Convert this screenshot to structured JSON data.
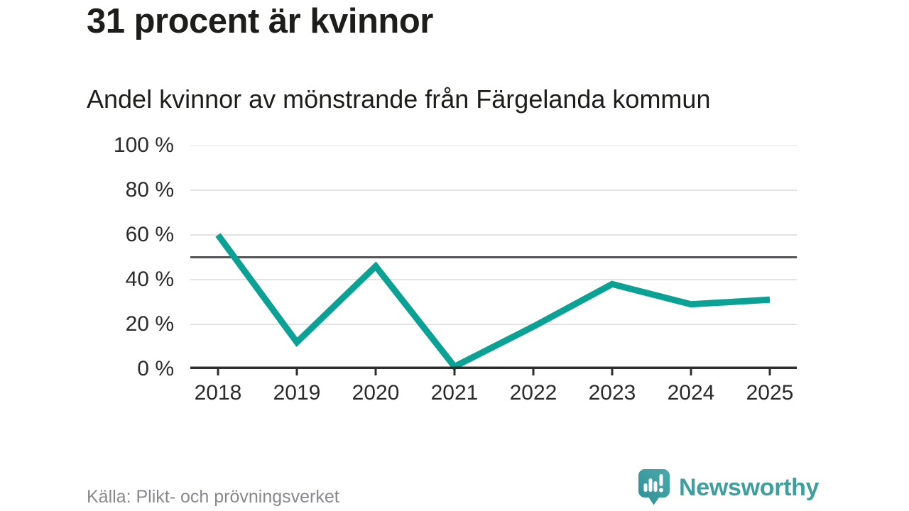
{
  "chart_data": {
    "type": "line",
    "title": "31 procent är kvinnor",
    "subtitle": "Andel kvinnor av mönstrande från Färgelanda kommun",
    "x": [
      "2018",
      "2019",
      "2020",
      "2021",
      "2022",
      "2023",
      "2024",
      "2025"
    ],
    "series": [
      {
        "name": "Andel kvinnor av mönstrande",
        "values": [
          60,
          12,
          46,
          0,
          19,
          38,
          29,
          31
        ]
      }
    ],
    "ylim": [
      0,
      100
    ],
    "yticks": [
      {
        "value": 0,
        "label": "0 %"
      },
      {
        "value": 20,
        "label": "20 %"
      },
      {
        "value": 40,
        "label": "40 %"
      },
      {
        "value": 60,
        "label": "60 %"
      },
      {
        "value": 80,
        "label": "80 %"
      },
      {
        "value": 100,
        "label": "100 %"
      }
    ],
    "reference_line_value": 50,
    "grid": true,
    "legend": "none"
  },
  "footer": {
    "source": "Källa: Plikt- och prövningsverket",
    "brand": "Newsworthy"
  },
  "colors": {
    "line_teal": "#0ba295",
    "brand_teal": "#3f9e9e",
    "brand_icon_dark": "#2f8f97",
    "brand_icon_light": "#4aa9a9",
    "title_text": "#1d1d1b",
    "axis_text": "#2b2b2b",
    "muted_text": "#88888f",
    "gridline": "#e3e3e3",
    "axis_line": "#2d2d2d",
    "reference_line": "#52525a"
  }
}
